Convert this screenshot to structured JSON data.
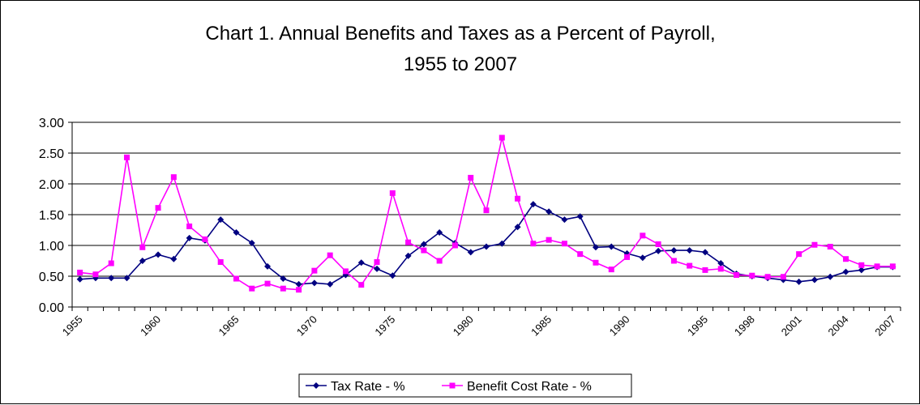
{
  "chart_data": {
    "type": "line",
    "title": "Chart 1. Annual Benefits and Taxes as a Percent of Payroll,",
    "subtitle": "1955 to 2007",
    "xlabel": "",
    "ylabel": "",
    "ylim": [
      0,
      3
    ],
    "yticks": [
      "0.00",
      "0.50",
      "1.00",
      "1.50",
      "2.00",
      "2.50",
      "3.00"
    ],
    "x": [
      1955,
      1956,
      1957,
      1958,
      1959,
      1960,
      1961,
      1962,
      1963,
      1964,
      1965,
      1966,
      1967,
      1968,
      1969,
      1970,
      1971,
      1972,
      1973,
      1974,
      1975,
      1976,
      1977,
      1978,
      1979,
      1980,
      1981,
      1982,
      1983,
      1984,
      1985,
      1986,
      1987,
      1988,
      1989,
      1990,
      1991,
      1992,
      1993,
      1994,
      1995,
      1996,
      1997,
      1998,
      1999,
      2000,
      2001,
      2002,
      2003,
      2004,
      2005,
      2006,
      2007
    ],
    "xticks": [
      "1955",
      "1960",
      "1965",
      "1970",
      "1975",
      "1980",
      "1985",
      "1990",
      "1995",
      "1998",
      "2001",
      "2004",
      "2007"
    ],
    "grid": "horizontal",
    "legend_position": "bottom",
    "series": [
      {
        "name": "Tax Rate - %",
        "color": "#000080",
        "marker": "diamond",
        "values": [
          0.45,
          0.47,
          0.47,
          0.47,
          0.75,
          0.85,
          0.78,
          1.12,
          1.08,
          1.42,
          1.21,
          1.04,
          0.66,
          0.46,
          0.37,
          0.39,
          0.37,
          0.52,
          0.72,
          0.62,
          0.51,
          0.83,
          1.02,
          1.21,
          1.04,
          0.89,
          0.98,
          1.03,
          1.3,
          1.67,
          1.55,
          1.42,
          1.47,
          0.97,
          0.98,
          0.87,
          0.8,
          0.91,
          0.92,
          0.92,
          0.89,
          0.71,
          0.54,
          0.5,
          0.47,
          0.44,
          0.41,
          0.44,
          0.49,
          0.57,
          0.6,
          0.65,
          0.65
        ]
      },
      {
        "name": "Benefit Cost Rate - %",
        "color": "#ff00ff",
        "marker": "square",
        "values": [
          0.56,
          0.53,
          0.71,
          2.43,
          0.97,
          1.61,
          2.11,
          1.31,
          1.1,
          0.73,
          0.46,
          0.3,
          0.38,
          0.3,
          0.28,
          0.59,
          0.84,
          0.58,
          0.36,
          0.73,
          1.85,
          1.05,
          0.92,
          0.75,
          1.0,
          2.1,
          1.57,
          2.75,
          1.76,
          1.03,
          1.09,
          1.03,
          0.86,
          0.72,
          0.61,
          0.81,
          1.16,
          1.02,
          0.75,
          0.67,
          0.6,
          0.62,
          0.52,
          0.51,
          0.49,
          0.49,
          0.86,
          1.01,
          0.98,
          0.78,
          0.68,
          0.66,
          0.66
        ]
      }
    ]
  }
}
